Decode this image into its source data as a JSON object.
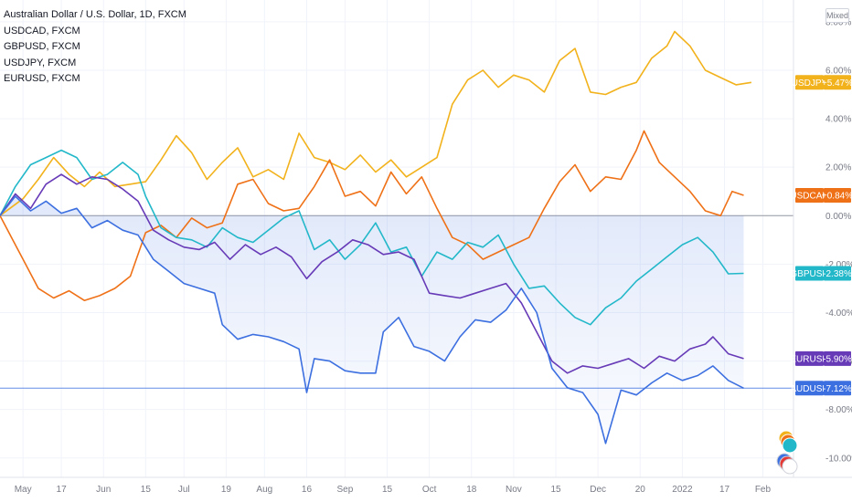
{
  "legend": {
    "title": "Australian Dollar / U.S. Dollar, 1D, FXCM",
    "items": [
      "USDCAD, FXCM",
      "GBPUSD, FXCM",
      "USDJPY, FXCM",
      "EURUSD, FXCM"
    ]
  },
  "scale_mode": "Mixed",
  "chart_data": {
    "type": "line",
    "y_unit": "%",
    "ylim": [
      -10.8,
      8.9
    ],
    "y_ticks": [
      8,
      6,
      4,
      2,
      0,
      -2,
      -4,
      -6,
      -8,
      -10
    ],
    "y_tick_labels": [
      "8.00%",
      "6.00%",
      "4.00%",
      "2.00%",
      "0.00%",
      "-2.00%",
      "-4.00%",
      "-6.00%",
      "-8.00%",
      "-10.00%"
    ],
    "x_ticks": [
      {
        "t": 6,
        "label": "May"
      },
      {
        "t": 16,
        "label": "17"
      },
      {
        "t": 27,
        "label": "Jun"
      },
      {
        "t": 38,
        "label": "15"
      },
      {
        "t": 48,
        "label": "Jul"
      },
      {
        "t": 59,
        "label": "19"
      },
      {
        "t": 69,
        "label": "Aug"
      },
      {
        "t": 80,
        "label": "16"
      },
      {
        "t": 90,
        "label": "Sep"
      },
      {
        "t": 101,
        "label": "15"
      },
      {
        "t": 112,
        "label": "Oct"
      },
      {
        "t": 123,
        "label": "18"
      },
      {
        "t": 134,
        "label": "Nov"
      },
      {
        "t": 145,
        "label": "15"
      },
      {
        "t": 156,
        "label": "Dec"
      },
      {
        "t": 167,
        "label": "20"
      },
      {
        "t": 178,
        "label": "2022"
      },
      {
        "t": 189,
        "label": "17"
      },
      {
        "t": 199,
        "label": "Feb"
      }
    ],
    "grid": true,
    "legend_position": "top-left",
    "series": [
      {
        "name": "USDJPY",
        "color": "#f2b21c",
        "last_label": "+5.47%",
        "points": [
          [
            0,
            0
          ],
          [
            6,
            0.7
          ],
          [
            10,
            1.5
          ],
          [
            14,
            2.4
          ],
          [
            18,
            1.7
          ],
          [
            22,
            1.2
          ],
          [
            26,
            1.8
          ],
          [
            30,
            1.2
          ],
          [
            34,
            1.3
          ],
          [
            38,
            1.4
          ],
          [
            42,
            2.3
          ],
          [
            46,
            3.3
          ],
          [
            50,
            2.6
          ],
          [
            54,
            1.5
          ],
          [
            58,
            2.2
          ],
          [
            62,
            2.8
          ],
          [
            66,
            1.6
          ],
          [
            70,
            1.9
          ],
          [
            74,
            1.5
          ],
          [
            78,
            3.4
          ],
          [
            82,
            2.4
          ],
          [
            86,
            2.2
          ],
          [
            90,
            1.9
          ],
          [
            94,
            2.5
          ],
          [
            98,
            1.8
          ],
          [
            102,
            2.3
          ],
          [
            106,
            1.6
          ],
          [
            110,
            2.0
          ],
          [
            114,
            2.4
          ],
          [
            118,
            4.6
          ],
          [
            122,
            5.6
          ],
          [
            126,
            6.0
          ],
          [
            130,
            5.3
          ],
          [
            134,
            5.8
          ],
          [
            138,
            5.6
          ],
          [
            142,
            5.1
          ],
          [
            146,
            6.4
          ],
          [
            150,
            6.9
          ],
          [
            154,
            5.1
          ],
          [
            158,
            5.0
          ],
          [
            162,
            5.3
          ],
          [
            166,
            5.5
          ],
          [
            170,
            6.5
          ],
          [
            174,
            7.0
          ],
          [
            176,
            7.6
          ],
          [
            180,
            7.0
          ],
          [
            184,
            6.0
          ],
          [
            188,
            5.7
          ],
          [
            192,
            5.4
          ],
          [
            196,
            5.5
          ]
        ]
      },
      {
        "name": "USDCAD",
        "color": "#ef7117",
        "last_label": "+0.84%",
        "points": [
          [
            0,
            0
          ],
          [
            3,
            -0.9
          ],
          [
            6,
            -1.8
          ],
          [
            10,
            -3.0
          ],
          [
            14,
            -3.4
          ],
          [
            18,
            -3.1
          ],
          [
            22,
            -3.5
          ],
          [
            26,
            -3.3
          ],
          [
            30,
            -3.0
          ],
          [
            34,
            -2.5
          ],
          [
            38,
            -0.7
          ],
          [
            42,
            -0.4
          ],
          [
            46,
            -0.9
          ],
          [
            50,
            -0.1
          ],
          [
            54,
            -0.5
          ],
          [
            58,
            -0.3
          ],
          [
            62,
            1.3
          ],
          [
            66,
            1.5
          ],
          [
            70,
            0.5
          ],
          [
            74,
            0.2
          ],
          [
            78,
            0.3
          ],
          [
            82,
            1.2
          ],
          [
            86,
            2.3
          ],
          [
            90,
            0.8
          ],
          [
            94,
            1.0
          ],
          [
            98,
            0.4
          ],
          [
            102,
            1.8
          ],
          [
            106,
            0.9
          ],
          [
            110,
            1.6
          ],
          [
            114,
            0.3
          ],
          [
            118,
            -0.9
          ],
          [
            122,
            -1.2
          ],
          [
            126,
            -1.8
          ],
          [
            130,
            -1.5
          ],
          [
            134,
            -1.2
          ],
          [
            138,
            -0.9
          ],
          [
            142,
            0.3
          ],
          [
            146,
            1.4
          ],
          [
            150,
            2.1
          ],
          [
            154,
            1.0
          ],
          [
            158,
            1.6
          ],
          [
            162,
            1.5
          ],
          [
            166,
            2.7
          ],
          [
            168,
            3.5
          ],
          [
            172,
            2.2
          ],
          [
            176,
            1.6
          ],
          [
            180,
            1.0
          ],
          [
            184,
            0.2
          ],
          [
            188,
            0.0
          ],
          [
            191,
            1.0
          ],
          [
            194,
            0.84
          ]
        ]
      },
      {
        "name": "GBPUSD",
        "color": "#22b8c9",
        "last_label": "-2.38%",
        "points": [
          [
            0,
            0
          ],
          [
            4,
            1.2
          ],
          [
            8,
            2.1
          ],
          [
            12,
            2.4
          ],
          [
            16,
            2.7
          ],
          [
            20,
            2.4
          ],
          [
            24,
            1.5
          ],
          [
            28,
            1.7
          ],
          [
            32,
            2.2
          ],
          [
            36,
            1.7
          ],
          [
            38,
            0.8
          ],
          [
            42,
            -0.5
          ],
          [
            46,
            -0.9
          ],
          [
            50,
            -1.0
          ],
          [
            54,
            -1.3
          ],
          [
            58,
            -0.5
          ],
          [
            62,
            -0.9
          ],
          [
            66,
            -1.1
          ],
          [
            70,
            -0.6
          ],
          [
            74,
            -0.1
          ],
          [
            78,
            0.2
          ],
          [
            82,
            -1.4
          ],
          [
            86,
            -1.0
          ],
          [
            90,
            -1.8
          ],
          [
            94,
            -1.2
          ],
          [
            98,
            -0.3
          ],
          [
            102,
            -1.5
          ],
          [
            106,
            -1.3
          ],
          [
            110,
            -2.5
          ],
          [
            114,
            -1.5
          ],
          [
            118,
            -1.8
          ],
          [
            122,
            -1.1
          ],
          [
            126,
            -1.3
          ],
          [
            130,
            -0.8
          ],
          [
            134,
            -2.0
          ],
          [
            138,
            -3.0
          ],
          [
            142,
            -2.9
          ],
          [
            146,
            -3.6
          ],
          [
            150,
            -4.2
          ],
          [
            154,
            -4.5
          ],
          [
            158,
            -3.8
          ],
          [
            162,
            -3.4
          ],
          [
            166,
            -2.7
          ],
          [
            170,
            -2.2
          ],
          [
            174,
            -1.7
          ],
          [
            178,
            -1.2
          ],
          [
            182,
            -0.9
          ],
          [
            186,
            -1.5
          ],
          [
            190,
            -2.4
          ],
          [
            194,
            -2.38
          ]
        ]
      },
      {
        "name": "EURUSD",
        "color": "#673ab7",
        "last_label": "-5.90%",
        "points": [
          [
            0,
            0
          ],
          [
            4,
            0.9
          ],
          [
            8,
            0.3
          ],
          [
            12,
            1.3
          ],
          [
            16,
            1.7
          ],
          [
            20,
            1.3
          ],
          [
            24,
            1.6
          ],
          [
            28,
            1.5
          ],
          [
            32,
            1.1
          ],
          [
            36,
            0.6
          ],
          [
            40,
            -0.6
          ],
          [
            44,
            -1.0
          ],
          [
            48,
            -1.3
          ],
          [
            52,
            -1.4
          ],
          [
            56,
            -1.1
          ],
          [
            60,
            -1.8
          ],
          [
            64,
            -1.2
          ],
          [
            68,
            -1.6
          ],
          [
            72,
            -1.3
          ],
          [
            76,
            -1.7
          ],
          [
            80,
            -2.6
          ],
          [
            84,
            -1.9
          ],
          [
            88,
            -1.5
          ],
          [
            92,
            -1.0
          ],
          [
            96,
            -1.2
          ],
          [
            100,
            -1.6
          ],
          [
            104,
            -1.5
          ],
          [
            108,
            -1.8
          ],
          [
            112,
            -3.2
          ],
          [
            116,
            -3.3
          ],
          [
            120,
            -3.4
          ],
          [
            124,
            -3.2
          ],
          [
            128,
            -3.0
          ],
          [
            132,
            -2.8
          ],
          [
            136,
            -3.6
          ],
          [
            140,
            -4.8
          ],
          [
            144,
            -6.0
          ],
          [
            148,
            -6.5
          ],
          [
            152,
            -6.2
          ],
          [
            156,
            -6.3
          ],
          [
            160,
            -6.1
          ],
          [
            164,
            -5.9
          ],
          [
            168,
            -6.3
          ],
          [
            172,
            -5.8
          ],
          [
            176,
            -6.0
          ],
          [
            180,
            -5.5
          ],
          [
            184,
            -5.3
          ],
          [
            186,
            -5.0
          ],
          [
            190,
            -5.7
          ],
          [
            194,
            -5.9
          ]
        ]
      },
      {
        "name": "AUDUSD",
        "color": "#3c6fe0",
        "last_label": "-7.12%",
        "points": [
          [
            0,
            0
          ],
          [
            4,
            0.8
          ],
          [
            8,
            0.2
          ],
          [
            12,
            0.6
          ],
          [
            16,
            0.1
          ],
          [
            20,
            0.3
          ],
          [
            24,
            -0.5
          ],
          [
            28,
            -0.2
          ],
          [
            32,
            -0.6
          ],
          [
            36,
            -0.8
          ],
          [
            40,
            -1.8
          ],
          [
            44,
            -2.3
          ],
          [
            48,
            -2.8
          ],
          [
            52,
            -3.0
          ],
          [
            56,
            -3.2
          ],
          [
            58,
            -4.5
          ],
          [
            62,
            -5.1
          ],
          [
            66,
            -4.9
          ],
          [
            70,
            -5.0
          ],
          [
            74,
            -5.2
          ],
          [
            78,
            -5.5
          ],
          [
            80,
            -7.3
          ],
          [
            82,
            -5.9
          ],
          [
            86,
            -6.0
          ],
          [
            90,
            -6.4
          ],
          [
            94,
            -6.5
          ],
          [
            98,
            -6.5
          ],
          [
            100,
            -4.8
          ],
          [
            104,
            -4.2
          ],
          [
            108,
            -5.4
          ],
          [
            112,
            -5.6
          ],
          [
            116,
            -6.0
          ],
          [
            120,
            -5.0
          ],
          [
            124,
            -4.3
          ],
          [
            128,
            -4.4
          ],
          [
            132,
            -3.9
          ],
          [
            136,
            -3.0
          ],
          [
            138,
            -3.5
          ],
          [
            140,
            -4.0
          ],
          [
            144,
            -6.3
          ],
          [
            148,
            -7.1
          ],
          [
            152,
            -7.3
          ],
          [
            156,
            -8.2
          ],
          [
            158,
            -9.4
          ],
          [
            162,
            -7.2
          ],
          [
            166,
            -7.4
          ],
          [
            170,
            -6.9
          ],
          [
            174,
            -6.5
          ],
          [
            178,
            -6.8
          ],
          [
            182,
            -6.6
          ],
          [
            186,
            -6.2
          ],
          [
            190,
            -6.8
          ],
          [
            194,
            -7.12
          ]
        ]
      }
    ],
    "main_series": "AUDUSD"
  }
}
